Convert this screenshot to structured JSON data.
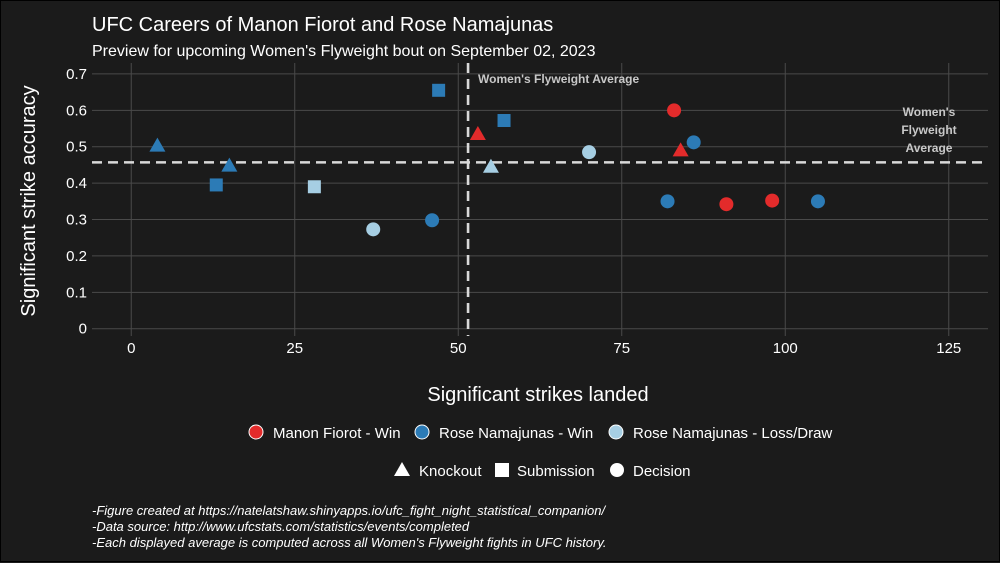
{
  "title": "UFC Careers of Manon Fiorot and Rose Namajunas",
  "subtitle": "Preview for upcoming Women's Flyweight bout on September 02, 2023",
  "colors": {
    "background": "#1b1b1b",
    "grid": "#4a4a4a",
    "fiorot_win": "#e32b2b",
    "namajunas_win": "#2c7bb6",
    "namajunas_loss": "#a6cee3"
  },
  "chart_data": {
    "type": "scatter",
    "xlabel": "Significant strikes landed",
    "ylabel": "Significant strike accuracy",
    "xlim": [
      -6,
      131
    ],
    "ylim": [
      -0.02,
      0.73
    ],
    "x_ticks": [
      0,
      25,
      50,
      75,
      100,
      125
    ],
    "y_ticks": [
      0,
      0.1,
      0.2,
      0.3,
      0.4,
      0.5,
      0.6,
      0.7
    ],
    "grid": true,
    "averages": {
      "x": 51.5,
      "y": 0.457,
      "x_label": "Women's Flyweight Average",
      "y_label_lines": [
        "Women's",
        "Flyweight",
        "Average"
      ]
    },
    "series": [
      {
        "name": "Manon Fiorot - Win",
        "color": "#e32b2b",
        "points": [
          {
            "x": 53,
            "y": 0.535,
            "method": "Knockout"
          },
          {
            "x": 84,
            "y": 0.49,
            "method": "Knockout"
          },
          {
            "x": 83,
            "y": 0.6,
            "method": "Decision"
          },
          {
            "x": 91,
            "y": 0.342,
            "method": "Decision"
          },
          {
            "x": 98,
            "y": 0.352,
            "method": "Decision"
          }
        ]
      },
      {
        "name": "Rose Namajunas - Win",
        "color": "#2c7bb6",
        "points": [
          {
            "x": 4,
            "y": 0.503,
            "method": "Knockout"
          },
          {
            "x": 15,
            "y": 0.448,
            "method": "Knockout"
          },
          {
            "x": 13,
            "y": 0.395,
            "method": "Submission"
          },
          {
            "x": 47,
            "y": 0.655,
            "method": "Submission"
          },
          {
            "x": 57,
            "y": 0.572,
            "method": "Submission"
          },
          {
            "x": 46,
            "y": 0.298,
            "method": "Decision"
          },
          {
            "x": 82,
            "y": 0.35,
            "method": "Decision"
          },
          {
            "x": 86,
            "y": 0.512,
            "method": "Decision"
          },
          {
            "x": 105,
            "y": 0.35,
            "method": "Decision"
          }
        ]
      },
      {
        "name": "Rose Namajunas - Loss/Draw",
        "color": "#a6cee3",
        "points": [
          {
            "x": 28,
            "y": 0.39,
            "method": "Submission"
          },
          {
            "x": 37,
            "y": 0.273,
            "method": "Decision"
          },
          {
            "x": 55,
            "y": 0.445,
            "method": "Knockout"
          },
          {
            "x": 70,
            "y": 0.485,
            "method": "Decision"
          }
        ]
      }
    ]
  },
  "legend": {
    "colors": [
      {
        "label": "Manon Fiorot - Win",
        "color": "#e32b2b"
      },
      {
        "label": "Rose Namajunas - Win",
        "color": "#2c7bb6"
      },
      {
        "label": "Rose Namajunas - Loss/Draw",
        "color": "#a6cee3"
      }
    ],
    "shapes": [
      {
        "label": "Knockout",
        "shape": "triangle"
      },
      {
        "label": "Submission",
        "shape": "square"
      },
      {
        "label": "Decision",
        "shape": "circle"
      }
    ]
  },
  "caption": {
    "line1": "-Figure created at https://natelatshaw.shinyapps.io/ufc_fight_night_statistical_companion/",
    "line2": "-Data source: http://www.ufcstats.com/statistics/events/completed",
    "line3": "-Each displayed average is computed across all Women's Flyweight fights in UFC history."
  }
}
